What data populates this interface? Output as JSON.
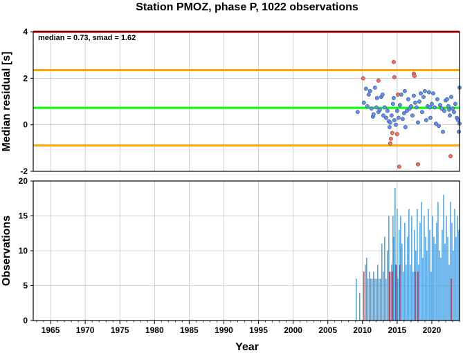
{
  "title": "Station PMOZ, phase P, 1022 observations",
  "chart_data": [
    {
      "type": "scatter",
      "ylabel": "Median residual [s]",
      "annotation": "median = 0.73, smad = 1.62",
      "xlim": [
        1962.5,
        2024
      ],
      "ylim": [
        -2,
        4
      ],
      "yticks": [
        -2,
        0,
        2,
        4
      ],
      "grid": true,
      "reference_lines": [
        {
          "y": 4.0,
          "color": "#ff0000"
        },
        {
          "y": 2.35,
          "color": "#ffa500"
        },
        {
          "y": 0.73,
          "color": "#00ff00"
        },
        {
          "y": -0.89,
          "color": "#ffa500"
        }
      ],
      "series": [
        {
          "color": "#5b8ff9",
          "points": [
            [
              2009.3,
              0.55
            ],
            [
              2010.2,
              0.95
            ],
            [
              2010.5,
              1.55
            ],
            [
              2010.7,
              0.8
            ],
            [
              2010.9,
              1.3
            ],
            [
              2011.1,
              1.45
            ],
            [
              2011.3,
              0.7
            ],
            [
              2011.5,
              0.35
            ],
            [
              2011.6,
              0.45
            ],
            [
              2011.8,
              1.6
            ],
            [
              2012.0,
              0.75
            ],
            [
              2012.1,
              1.15
            ],
            [
              2012.3,
              0.55
            ],
            [
              2012.5,
              0.65
            ],
            [
              2012.7,
              1.2
            ],
            [
              2012.9,
              1.3
            ],
            [
              2013.0,
              0.4
            ],
            [
              2013.2,
              0.75
            ],
            [
              2013.4,
              0.3
            ],
            [
              2013.6,
              0.6
            ],
            [
              2013.8,
              0.15
            ],
            [
              2013.9,
              -0.1
            ],
            [
              2014.0,
              0.1
            ],
            [
              2014.2,
              0.4
            ],
            [
              2014.4,
              0.9
            ],
            [
              2014.5,
              1.15
            ],
            [
              2014.6,
              0.2
            ],
            [
              2014.8,
              0.0
            ],
            [
              2015.0,
              0.6
            ],
            [
              2015.2,
              0.3
            ],
            [
              2015.4,
              0.85
            ],
            [
              2015.6,
              1.3
            ],
            [
              2015.8,
              0.25
            ],
            [
              2016.0,
              0.5
            ],
            [
              2016.2,
              -0.1
            ],
            [
              2016.4,
              0.6
            ],
            [
              2016.6,
              1.1
            ],
            [
              2016.8,
              0.7
            ],
            [
              2017.0,
              0.8
            ],
            [
              2017.2,
              0.4
            ],
            [
              2017.4,
              1.25
            ],
            [
              2017.6,
              0.95
            ],
            [
              2017.8,
              0.75
            ],
            [
              2018.0,
              0.1
            ],
            [
              2018.2,
              1.0
            ],
            [
              2018.4,
              1.35
            ],
            [
              2018.6,
              0.55
            ],
            [
              2018.8,
              1.2
            ],
            [
              2019.0,
              1.45
            ],
            [
              2019.2,
              0.2
            ],
            [
              2019.4,
              0.8
            ],
            [
              2019.6,
              1.4
            ],
            [
              2019.8,
              0.3
            ],
            [
              2020.0,
              0.9
            ],
            [
              2020.2,
              1.35
            ],
            [
              2020.4,
              0.75
            ],
            [
              2020.6,
              0.05
            ],
            [
              2020.8,
              1.1
            ],
            [
              2021.0,
              -0.05
            ],
            [
              2021.2,
              0.85
            ],
            [
              2021.4,
              0.7
            ],
            [
              2021.6,
              -0.3
            ],
            [
              2021.8,
              0.6
            ],
            [
              2022.0,
              1.05
            ],
            [
              2022.2,
              1.1
            ],
            [
              2022.4,
              0.8
            ],
            [
              2022.6,
              0.4
            ],
            [
              2022.8,
              1.2
            ],
            [
              2023.0,
              0.7
            ],
            [
              2023.2,
              0.55
            ],
            [
              2023.4,
              0.9
            ],
            [
              2023.6,
              0.3
            ],
            [
              2023.8,
              0.2
            ],
            [
              2024.0,
              1.6
            ],
            [
              2024.0,
              0.05
            ],
            [
              2023.9,
              -0.3
            ],
            [
              2016.1,
              1.45
            ],
            [
              2019.7,
              0.75
            ],
            [
              2022.5,
              0.65
            ]
          ]
        },
        {
          "color": "#ff6b5b",
          "points": [
            [
              2010.1,
              2.0
            ],
            [
              2012.3,
              1.9
            ],
            [
              2014.5,
              2.7
            ],
            [
              2014.6,
              2.05
            ],
            [
              2015.1,
              1.3
            ],
            [
              2017.4,
              2.2
            ],
            [
              2017.5,
              2.1
            ],
            [
              2014.1,
              -0.6
            ],
            [
              2014.3,
              -0.35
            ],
            [
              2015.0,
              -0.4
            ],
            [
              2014.0,
              -0.8
            ],
            [
              2015.3,
              -1.8
            ],
            [
              2018.0,
              -1.7
            ],
            [
              2022.7,
              -1.35
            ]
          ]
        }
      ]
    },
    {
      "type": "bar",
      "ylabel": "Observations",
      "xlabel": "Year",
      "xlim": [
        1962.5,
        2024
      ],
      "ylim": [
        0,
        20
      ],
      "yticks": [
        0,
        5,
        10,
        15,
        20
      ],
      "xticks": [
        1965,
        1970,
        1975,
        1980,
        1985,
        1990,
        1995,
        2000,
        2005,
        2010,
        2015,
        2020
      ],
      "grid": true,
      "series": [
        {
          "color": "#3b9ae1",
          "x": [
            2009.1,
            2009.6,
            2010.4,
            2010.6,
            2010.8,
            2011.0,
            2011.2,
            2011.4,
            2011.6,
            2011.8,
            2012.0,
            2012.2,
            2012.4,
            2012.6,
            2012.8,
            2013.0,
            2013.2,
            2013.4,
            2013.6,
            2013.8,
            2014.0,
            2014.2,
            2014.4,
            2014.5,
            2014.7,
            2014.9,
            2015.0,
            2015.1,
            2015.3,
            2015.5,
            2015.7,
            2015.9,
            2016.1,
            2016.3,
            2016.5,
            2016.7,
            2016.9,
            2017.1,
            2017.3,
            2017.5,
            2017.7,
            2017.9,
            2018.1,
            2018.3,
            2018.5,
            2018.7,
            2018.9,
            2019.1,
            2019.3,
            2019.5,
            2019.7,
            2019.9,
            2020.1,
            2020.3,
            2020.5,
            2020.7,
            2020.9,
            2021.1,
            2021.3,
            2021.5,
            2021.7,
            2021.9,
            2022.1,
            2022.3,
            2022.5,
            2022.7,
            2022.9,
            2023.1,
            2023.3,
            2023.5,
            2023.7,
            2023.9
          ],
          "values": [
            6,
            4,
            8,
            9,
            6,
            7,
            6,
            6,
            7,
            6,
            6,
            8,
            6,
            6,
            11,
            7,
            12,
            6,
            10,
            15,
            7,
            8,
            15,
            12,
            19,
            8,
            16,
            6,
            13,
            15,
            11,
            7,
            14,
            8,
            12,
            16,
            8,
            15,
            7,
            13,
            10,
            16,
            8,
            14,
            17,
            9,
            15,
            12,
            10,
            16,
            13,
            7,
            15,
            12,
            11,
            14,
            17,
            10,
            9,
            13,
            18,
            11,
            15,
            12,
            8,
            17,
            14,
            10,
            16,
            12,
            15,
            13
          ]
        },
        {
          "color": "#e0303a",
          "x": [
            2010.2,
            2013.9,
            2014.3,
            2014.8,
            2015.4,
            2017.6,
            2018.0,
            2022.8
          ],
          "values": [
            7,
            7,
            7,
            8,
            8,
            7,
            7,
            6
          ]
        }
      ]
    }
  ]
}
